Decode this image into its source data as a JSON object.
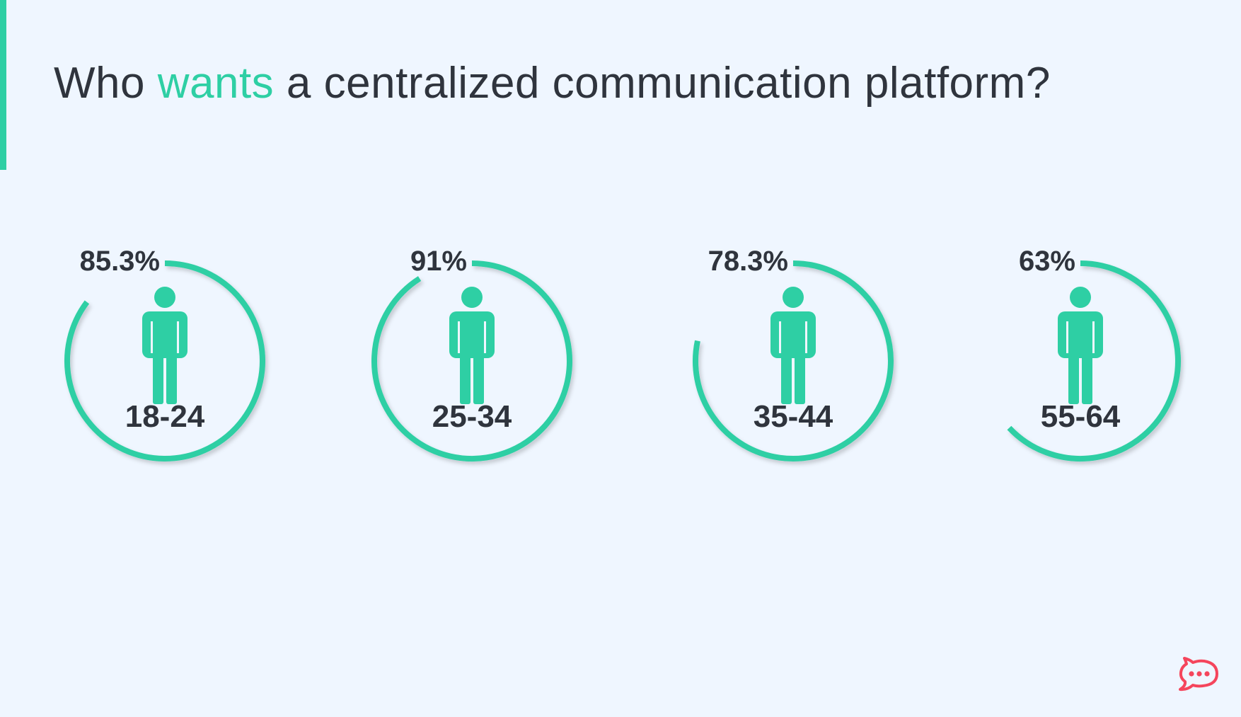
{
  "title": {
    "prefix": "Who ",
    "highlight": "wants",
    "suffix": " a centralized communication platform?"
  },
  "colors": {
    "accent": "#2ecfa4",
    "text": "#2f343d",
    "background": "#eff6ff",
    "logo": "#f5455c"
  },
  "icons": {
    "person": "person-icon",
    "logo": "chat-bubble-logo-icon"
  },
  "chart_data": {
    "type": "radial-progress",
    "categories": [
      "18-24",
      "25-34",
      "35-44",
      "55-64"
    ],
    "values": [
      85.3,
      91,
      78.3,
      63
    ],
    "value_labels": [
      "85.3%",
      "91%",
      "78.3%",
      "63%"
    ],
    "unit": "%",
    "max": 100
  }
}
